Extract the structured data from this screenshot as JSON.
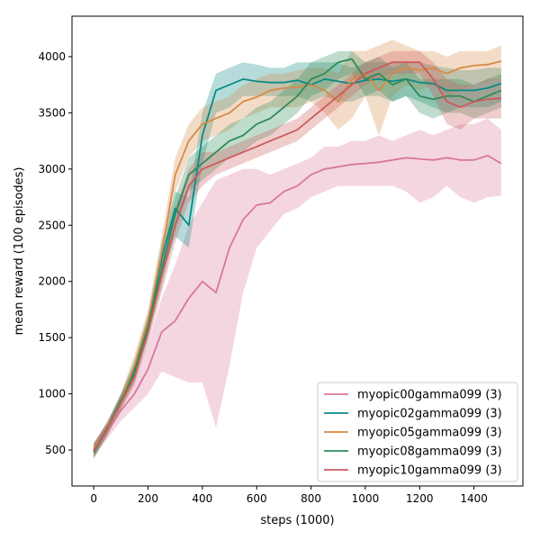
{
  "chart_data": {
    "type": "line",
    "title": "",
    "xlabel": "steps (1000)",
    "ylabel": "mean reward (100 episodes)",
    "xlim": [
      -80,
      1580
    ],
    "ylim": [
      180,
      4360
    ],
    "xticks": [
      0,
      200,
      400,
      600,
      800,
      1000,
      1200,
      1400
    ],
    "yticks": [
      500,
      1000,
      1500,
      2000,
      2500,
      3000,
      3500,
      4000
    ],
    "grid": false,
    "legend_position": "bottom-right",
    "x": [
      0,
      50,
      100,
      150,
      200,
      250,
      300,
      350,
      400,
      450,
      500,
      550,
      600,
      650,
      700,
      750,
      800,
      850,
      900,
      950,
      1000,
      1050,
      1100,
      1150,
      1200,
      1250,
      1300,
      1350,
      1400,
      1450,
      1500
    ],
    "series": [
      {
        "name": "myopic00gamma099 (3)",
        "color": "#d9779b",
        "values": [
          490,
          660,
          850,
          1000,
          1220,
          1550,
          1650,
          1850,
          2000,
          1900,
          2300,
          2550,
          2680,
          2700,
          2800,
          2850,
          2950,
          3000,
          3020,
          3040,
          3050,
          3060,
          3080,
          3100,
          3090,
          3080,
          3100,
          3080,
          3080,
          3120,
          3050
        ],
        "lower": [
          430,
          600,
          760,
          880,
          1000,
          1200,
          1150,
          1100,
          1100,
          700,
          1250,
          1900,
          2300,
          2450,
          2600,
          2650,
          2750,
          2800,
          2850,
          2850,
          2850,
          2850,
          2850,
          2800,
          2700,
          2750,
          2850,
          2750,
          2700,
          2750,
          2760
        ],
        "upper": [
          560,
          720,
          950,
          1150,
          1450,
          1850,
          2150,
          2500,
          2700,
          2900,
          2950,
          3000,
          3000,
          2950,
          3000,
          3050,
          3100,
          3200,
          3200,
          3250,
          3250,
          3300,
          3250,
          3300,
          3350,
          3300,
          3350,
          3400,
          3400,
          3450,
          3350
        ]
      },
      {
        "name": "myopic02gamma099 (3)",
        "color": "#0a8a86",
        "values": [
          500,
          690,
          950,
          1220,
          1600,
          2200,
          2650,
          2500,
          3300,
          3700,
          3750,
          3800,
          3780,
          3770,
          3770,
          3790,
          3750,
          3800,
          3780,
          3760,
          3790,
          3800,
          3780,
          3800,
          3770,
          3760,
          3700,
          3700,
          3700,
          3720,
          3760
        ],
        "lower": [
          440,
          640,
          900,
          1150,
          1500,
          2050,
          2400,
          2300,
          3050,
          3500,
          3550,
          3650,
          3650,
          3650,
          3650,
          3650,
          3600,
          3650,
          3600,
          3600,
          3650,
          3650,
          3600,
          3650,
          3600,
          3550,
          3500,
          3550,
          3550,
          3550,
          3600
        ],
        "upper": [
          560,
          740,
          1000,
          1300,
          1700,
          2350,
          2800,
          2750,
          3500,
          3850,
          3900,
          3950,
          3930,
          3900,
          3900,
          3950,
          3950,
          3950,
          3950,
          3900,
          3950,
          3950,
          3950,
          3950,
          3950,
          3920,
          3900,
          3880,
          3880,
          3900,
          3900
        ]
      },
      {
        "name": "myopic05gamma099 (3)",
        "color": "#d68a45",
        "values": [
          510,
          680,
          940,
          1250,
          1650,
          2250,
          2950,
          3250,
          3400,
          3450,
          3500,
          3600,
          3640,
          3700,
          3720,
          3730,
          3750,
          3700,
          3600,
          3800,
          3850,
          3700,
          3850,
          3900,
          3880,
          3900,
          3850,
          3900,
          3920,
          3930,
          3960
        ],
        "lower": [
          450,
          620,
          880,
          1150,
          1550,
          2100,
          2800,
          3100,
          3250,
          3300,
          3350,
          3450,
          3500,
          3550,
          3550,
          3550,
          3600,
          3500,
          3350,
          3450,
          3650,
          3300,
          3650,
          3750,
          3700,
          3750,
          3650,
          3700,
          3750,
          3780,
          3800
        ],
        "upper": [
          570,
          740,
          1000,
          1350,
          1750,
          2400,
          3100,
          3400,
          3550,
          3600,
          3650,
          3750,
          3800,
          3850,
          3850,
          3880,
          3900,
          3900,
          3850,
          4050,
          4050,
          4100,
          4150,
          4100,
          4050,
          4050,
          4000,
          4050,
          4050,
          4050,
          4100
        ]
      },
      {
        "name": "myopic08gamma099 (3)",
        "color": "#2e8b57",
        "values": [
          480,
          690,
          930,
          1180,
          1600,
          2100,
          2600,
          2950,
          3050,
          3150,
          3250,
          3300,
          3400,
          3450,
          3550,
          3650,
          3800,
          3850,
          3950,
          3980,
          3800,
          3850,
          3750,
          3800,
          3650,
          3620,
          3650,
          3650,
          3600,
          3650,
          3700
        ],
        "lower": [
          420,
          630,
          860,
          1100,
          1500,
          1950,
          2450,
          2800,
          2900,
          3000,
          3100,
          3150,
          3250,
          3300,
          3400,
          3500,
          3650,
          3700,
          3800,
          3850,
          3650,
          3700,
          3600,
          3650,
          3500,
          3450,
          3500,
          3500,
          3450,
          3500,
          3550
        ],
        "upper": [
          540,
          750,
          1000,
          1260,
          1700,
          2250,
          2750,
          3100,
          3200,
          3300,
          3400,
          3450,
          3550,
          3600,
          3700,
          3800,
          3950,
          4000,
          4050,
          4050,
          3950,
          4000,
          3900,
          3950,
          3800,
          3800,
          3800,
          3800,
          3750,
          3800,
          3850
        ]
      },
      {
        "name": "myopic10gamma099 (3)",
        "color": "#cd5a5a",
        "values": [
          490,
          700,
          920,
          1150,
          1550,
          2050,
          2500,
          2850,
          3000,
          3050,
          3100,
          3150,
          3200,
          3250,
          3300,
          3350,
          3450,
          3550,
          3650,
          3750,
          3850,
          3900,
          3950,
          3950,
          3950,
          3800,
          3600,
          3550,
          3600,
          3620,
          3630
        ],
        "lower": [
          430,
          640,
          860,
          1080,
          1450,
          1900,
          2350,
          2700,
          2850,
          2950,
          3000,
          3050,
          3100,
          3150,
          3200,
          3250,
          3350,
          3450,
          3550,
          3650,
          3750,
          3800,
          3850,
          3850,
          3850,
          3650,
          3400,
          3350,
          3450,
          3450,
          3450
        ],
        "upper": [
          550,
          760,
          980,
          1220,
          1650,
          2200,
          2650,
          3000,
          3150,
          3150,
          3200,
          3250,
          3300,
          3350,
          3400,
          3450,
          3550,
          3650,
          3750,
          3850,
          3950,
          4000,
          4050,
          4050,
          4050,
          3950,
          3800,
          3750,
          3750,
          3800,
          3800
        ]
      }
    ]
  }
}
